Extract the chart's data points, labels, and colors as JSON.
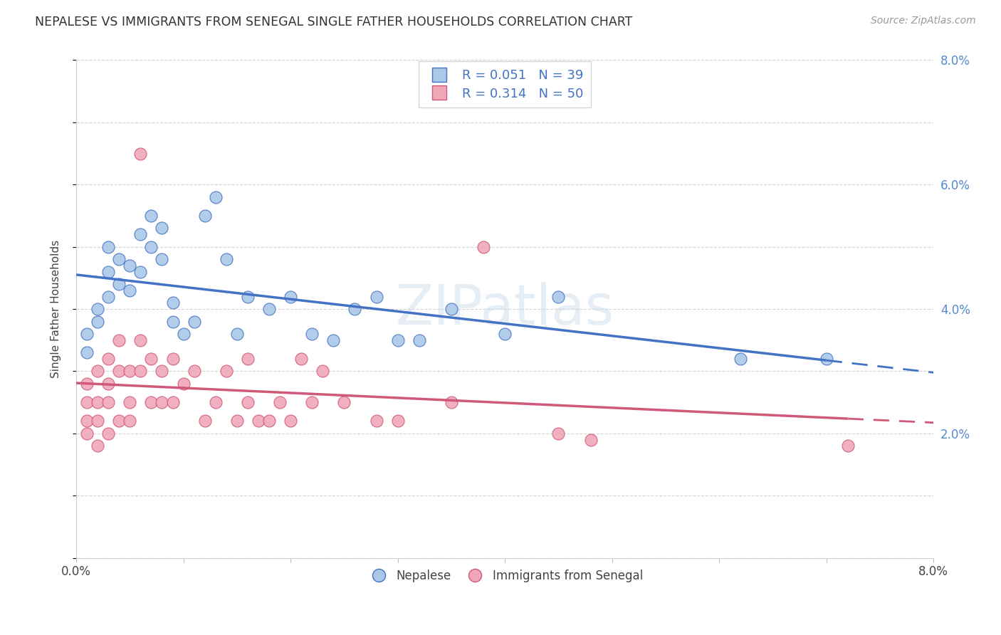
{
  "title": "NEPALESE VS IMMIGRANTS FROM SENEGAL SINGLE FATHER HOUSEHOLDS CORRELATION CHART",
  "source": "Source: ZipAtlas.com",
  "ylabel": "Single Father Households",
  "x_min": 0.0,
  "x_max": 0.08,
  "y_min": 0.0,
  "y_max": 0.08,
  "blue_color": "#aac8e8",
  "pink_color": "#f0a8b8",
  "blue_line_color": "#4472c4",
  "pink_line_color": "#d05878",
  "blue_r": 0.051,
  "blue_n": 39,
  "pink_r": 0.314,
  "pink_n": 50,
  "nepalese_x": [
    0.001,
    0.001,
    0.002,
    0.002,
    0.003,
    0.003,
    0.003,
    0.004,
    0.004,
    0.005,
    0.005,
    0.006,
    0.006,
    0.007,
    0.007,
    0.008,
    0.008,
    0.009,
    0.009,
    0.01,
    0.011,
    0.012,
    0.013,
    0.014,
    0.015,
    0.016,
    0.018,
    0.02,
    0.022,
    0.024,
    0.026,
    0.028,
    0.03,
    0.032,
    0.035,
    0.04,
    0.045,
    0.062,
    0.07
  ],
  "nepalese_y": [
    0.036,
    0.033,
    0.04,
    0.038,
    0.042,
    0.046,
    0.05,
    0.044,
    0.048,
    0.043,
    0.047,
    0.052,
    0.046,
    0.055,
    0.05,
    0.048,
    0.053,
    0.041,
    0.038,
    0.036,
    0.038,
    0.055,
    0.058,
    0.048,
    0.036,
    0.042,
    0.04,
    0.042,
    0.036,
    0.035,
    0.04,
    0.042,
    0.035,
    0.035,
    0.04,
    0.036,
    0.042,
    0.032,
    0.032
  ],
  "senegal_x": [
    0.001,
    0.001,
    0.001,
    0.001,
    0.002,
    0.002,
    0.002,
    0.002,
    0.003,
    0.003,
    0.003,
    0.003,
    0.004,
    0.004,
    0.004,
    0.005,
    0.005,
    0.005,
    0.006,
    0.006,
    0.006,
    0.007,
    0.007,
    0.008,
    0.008,
    0.009,
    0.009,
    0.01,
    0.011,
    0.012,
    0.013,
    0.014,
    0.015,
    0.016,
    0.016,
    0.017,
    0.018,
    0.019,
    0.02,
    0.021,
    0.022,
    0.023,
    0.025,
    0.028,
    0.03,
    0.035,
    0.038,
    0.045,
    0.048,
    0.072
  ],
  "senegal_y": [
    0.025,
    0.028,
    0.022,
    0.02,
    0.03,
    0.025,
    0.022,
    0.018,
    0.032,
    0.028,
    0.025,
    0.02,
    0.035,
    0.03,
    0.022,
    0.025,
    0.022,
    0.03,
    0.035,
    0.03,
    0.065,
    0.025,
    0.032,
    0.025,
    0.03,
    0.025,
    0.032,
    0.028,
    0.03,
    0.022,
    0.025,
    0.03,
    0.022,
    0.025,
    0.032,
    0.022,
    0.022,
    0.025,
    0.022,
    0.032,
    0.025,
    0.03,
    0.025,
    0.022,
    0.022,
    0.025,
    0.05,
    0.02,
    0.019,
    0.018
  ],
  "background_color": "#ffffff",
  "grid_color": "#d4d4d4"
}
